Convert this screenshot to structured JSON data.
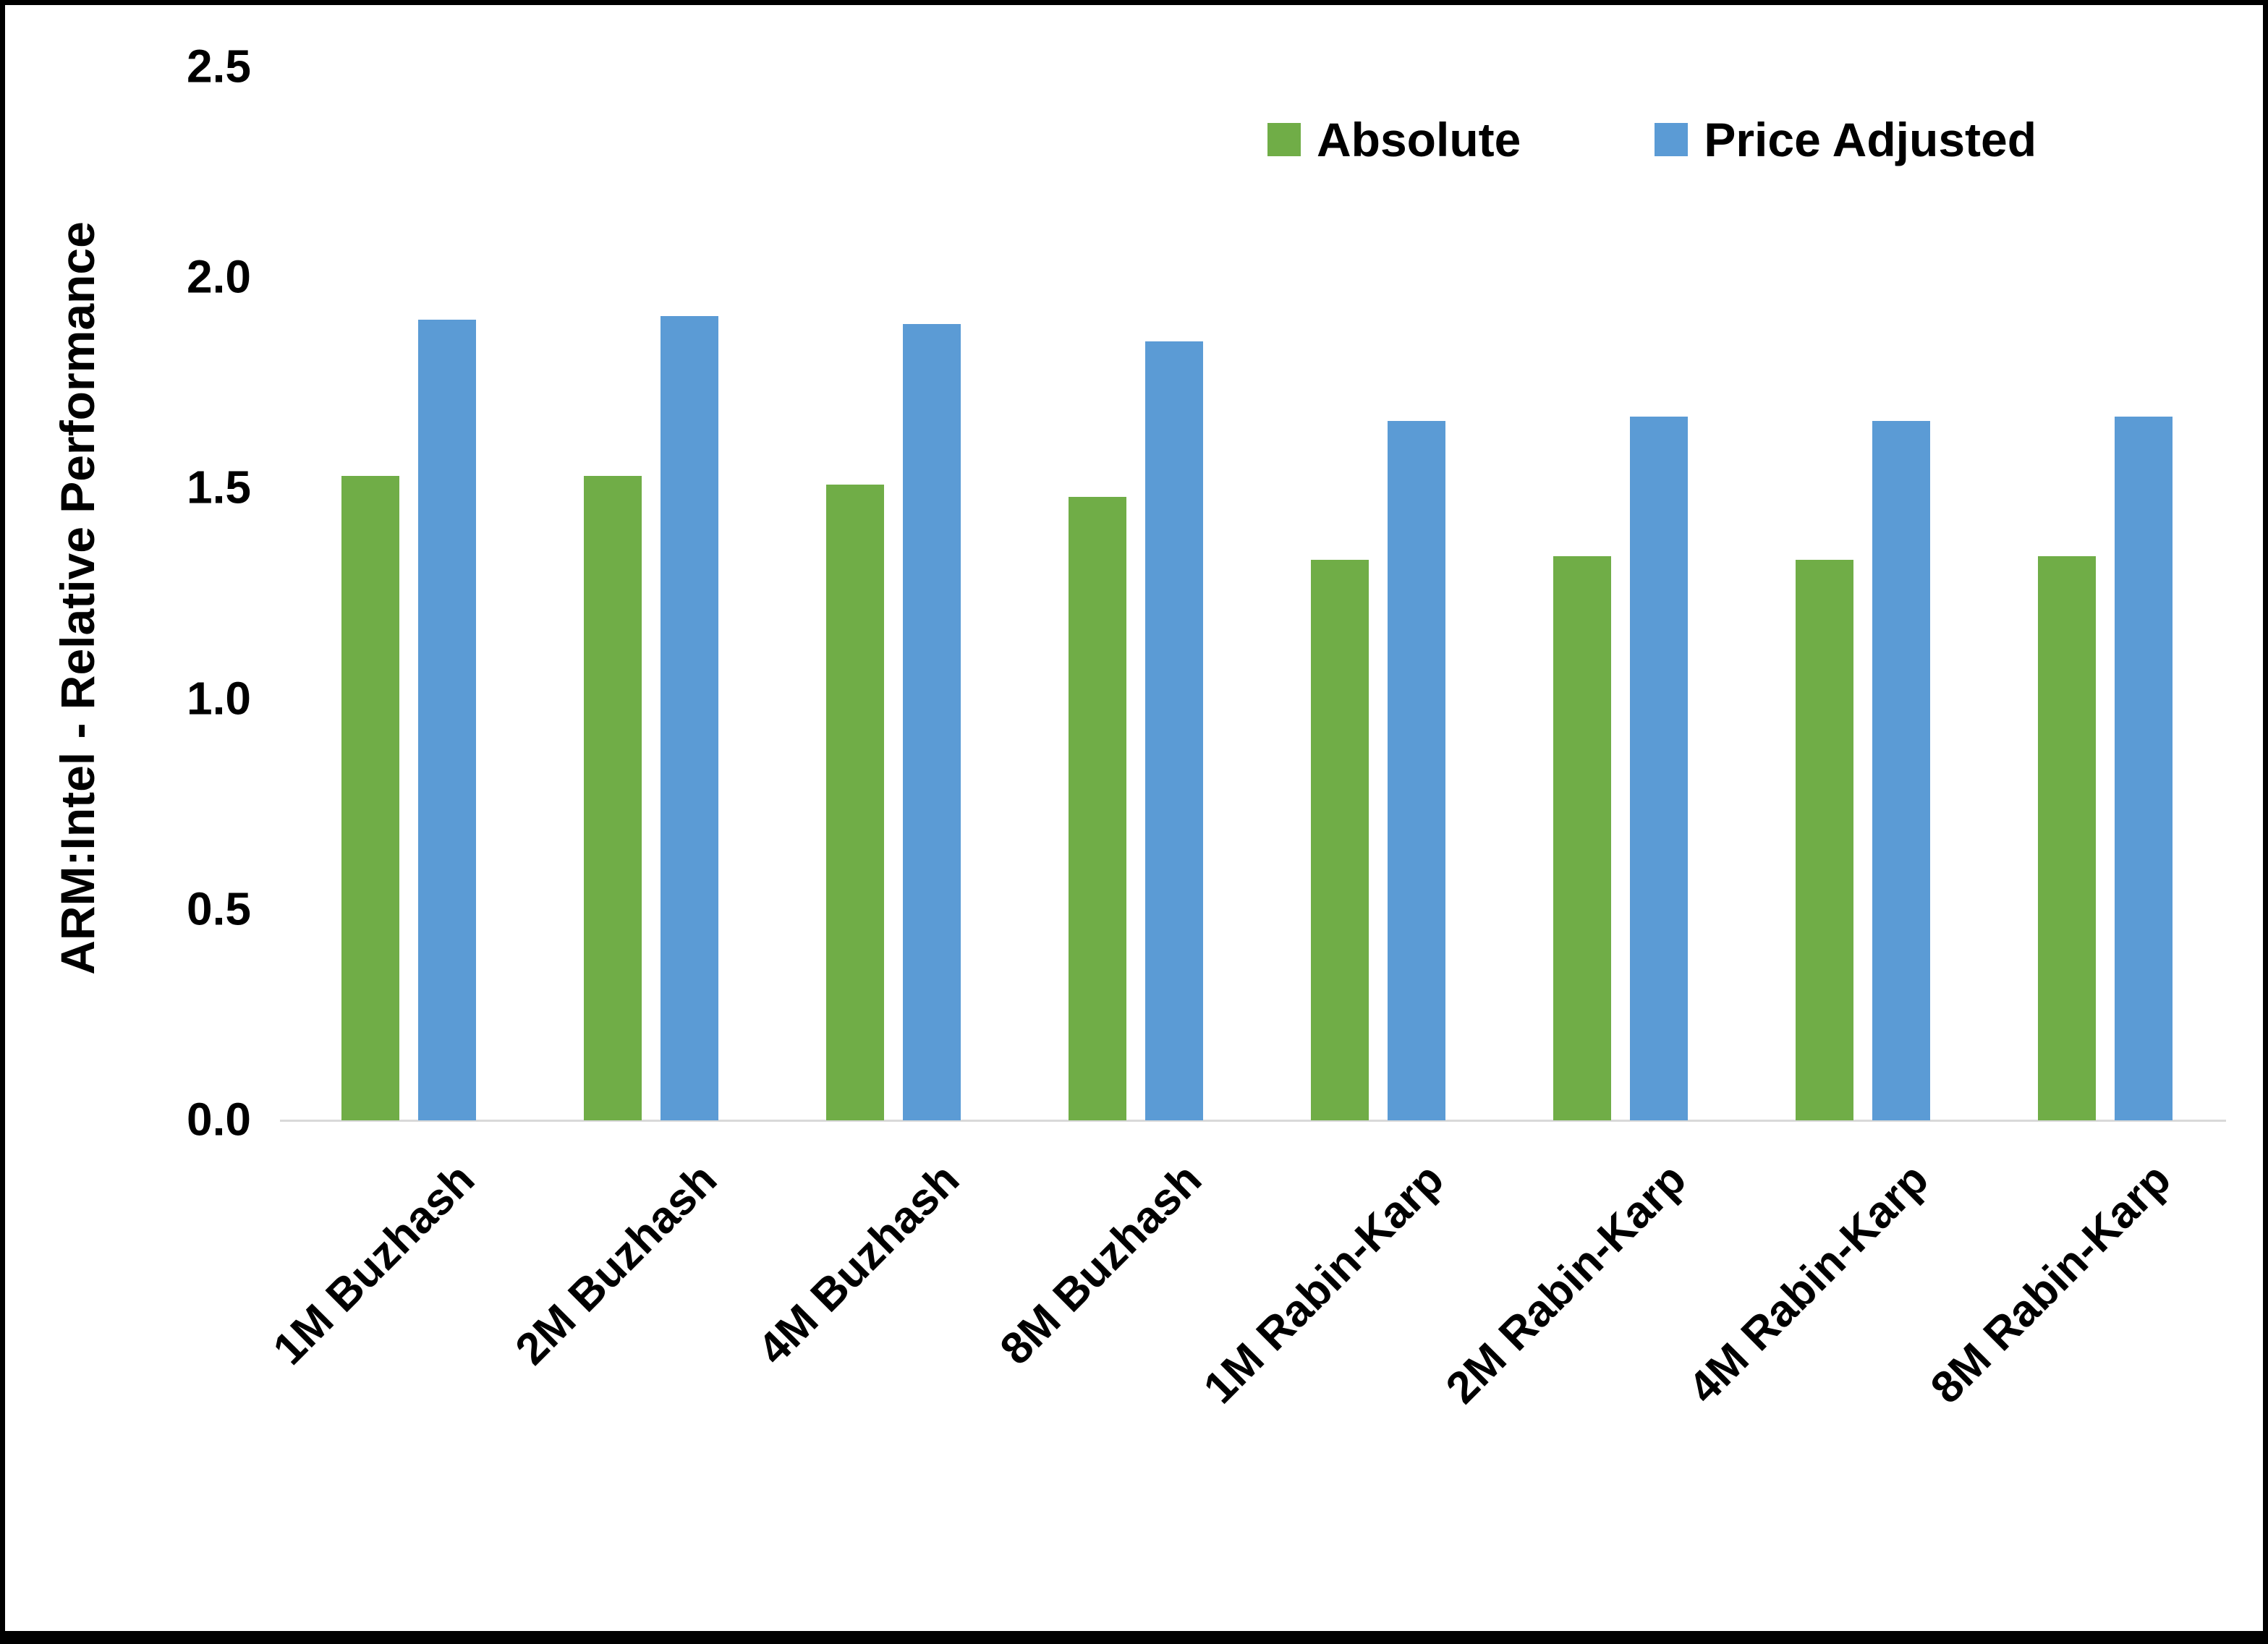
{
  "chart_data": {
    "type": "bar",
    "title": "",
    "xlabel": "",
    "ylabel": "ARM:Intel - Relative Performance",
    "ylim": [
      0,
      2.5
    ],
    "ytick_labels": [
      "0.0",
      "0.5",
      "1.0",
      "1.5",
      "2.0",
      "2.5"
    ],
    "ytick_values": [
      0,
      0.5,
      1.0,
      1.5,
      2.0,
      2.5
    ],
    "grid": false,
    "legend_position": "top-right",
    "categories": [
      "1M Buzhash",
      "2M Buzhash",
      "4M Buzhash",
      "8M Buzhash",
      "1M Rabin-Karp",
      "2M Rabin-Karp",
      "4M Rabin-Karp",
      "8M Rabin-Karp"
    ],
    "series": [
      {
        "name": "Absolute",
        "color": "#70AD47",
        "values": [
          1.53,
          1.53,
          1.51,
          1.48,
          1.33,
          1.34,
          1.33,
          1.34
        ]
      },
      {
        "name": "Price Adjusted",
        "color": "#5B9BD5",
        "values": [
          1.9,
          1.91,
          1.89,
          1.85,
          1.66,
          1.67,
          1.66,
          1.67
        ]
      }
    ],
    "axis_line_color": "#d9d9d9",
    "frame_border_color": "#000000"
  }
}
